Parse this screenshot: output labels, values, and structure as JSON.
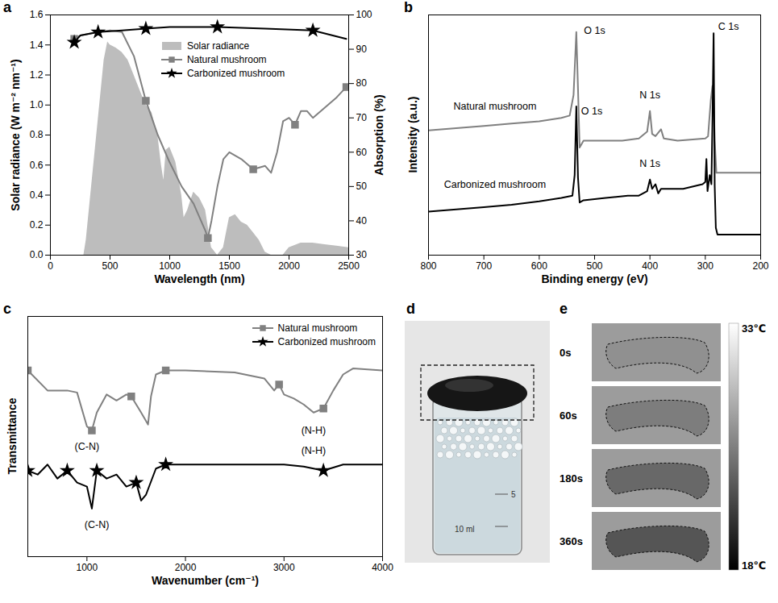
{
  "chart_data": [
    {
      "letter": "a",
      "type": "line",
      "x_label": "Wavelength (nm)",
      "y_label": "Solar radiance (W m⁻² nm⁻¹)",
      "y2_label": "Absorption (%)",
      "xlim": [
        0,
        2500
      ],
      "xticks": [
        0,
        500,
        1000,
        1500,
        2000,
        2500
      ],
      "ylim": [
        0,
        1.6
      ],
      "yticks": [
        {
          "value": 0,
          "label": "0.0"
        },
        0.2,
        0.4,
        0.6,
        0.8,
        {
          "value": 1,
          "label": "1.0"
        },
        1.2,
        1.4,
        1.6
      ],
      "y2lim": [
        30,
        100
      ],
      "y2ticks": [
        30,
        40,
        50,
        60,
        70,
        80,
        90,
        100
      ],
      "legend": "top",
      "series": [
        {
          "name": "Solar radiance",
          "type": "area",
          "color": "#bdbdbd",
          "x": [
            280,
            300,
            350,
            400,
            450,
            480,
            500,
            550,
            600,
            650,
            700,
            750,
            800,
            850,
            900,
            930,
            950,
            970,
            1000,
            1050,
            1100,
            1120,
            1150,
            1200,
            1250,
            1300,
            1350,
            1400,
            1450,
            1500,
            1550,
            1600,
            1650,
            1700,
            1750,
            1800,
            1850,
            1950,
            2000,
            2100,
            2200,
            2300,
            2400,
            2500
          ],
          "values": [
            0,
            0.1,
            0.5,
            0.9,
            1.3,
            1.42,
            1.4,
            1.38,
            1.35,
            1.3,
            1.2,
            1.1,
            1.0,
            0.95,
            0.8,
            0.6,
            0.5,
            0.7,
            0.72,
            0.62,
            0.4,
            0.25,
            0.3,
            0.42,
            0.38,
            0.3,
            0.05,
            0,
            0.05,
            0.25,
            0.27,
            0.22,
            0.2,
            0.15,
            0.1,
            0.02,
            0,
            0,
            0.05,
            0.08,
            0.08,
            0.07,
            0.06,
            0.05
          ]
        },
        {
          "name": "Natural mushroom",
          "axis": "y2",
          "color": "#808080",
          "marker": "square",
          "x": [
            200,
            250,
            400,
            500,
            600,
            700,
            800,
            900,
            1000,
            1100,
            1200,
            1300,
            1320,
            1350,
            1400,
            1450,
            1500,
            1600,
            1700,
            1800,
            1850,
            1900,
            1950,
            2000,
            2050,
            2100,
            2150,
            2200,
            2300,
            2400,
            2480
          ],
          "values": [
            93,
            94,
            95,
            95.5,
            95,
            88,
            75,
            65,
            57,
            50,
            45,
            37,
            35,
            40,
            50,
            58,
            60,
            58,
            55,
            56,
            54,
            60,
            69,
            70,
            68,
            72,
            72,
            70,
            73,
            76,
            79
          ]
        },
        {
          "name": "Carbonized mushroom",
          "axis": "y2",
          "color": "#000000",
          "marker": "star",
          "x": [
            200,
            250,
            400,
            600,
            800,
            1000,
            1400,
            1800,
            2200,
            2480
          ],
          "values": [
            92,
            94,
            95,
            95.5,
            96,
            96.5,
            96.5,
            96,
            95.5,
            93
          ]
        }
      ]
    },
    {
      "letter": "b",
      "type": "line",
      "x_label": "Binding energy (eV)",
      "y_label": "Intensity (a.u.)",
      "xlim": [
        800,
        200
      ],
      "xticks": [
        800,
        700,
        600,
        500,
        400,
        300,
        200
      ],
      "ylim": [
        0,
        10.5
      ],
      "tick_labels": "x",
      "annotations": [
        {
          "text": "O 1s",
          "x": 500,
          "y": 9.8
        },
        {
          "text": "N 1s",
          "x": 400,
          "y": 7.0
        },
        {
          "text": "C 1s",
          "x": 258,
          "y": 10.0
        },
        {
          "text": "O 1s",
          "x": 505,
          "y": 6.3
        },
        {
          "text": "N 1s",
          "x": 400,
          "y": 4.0
        },
        {
          "text": "Natural mushroom",
          "x": 680,
          "y": 6.5
        },
        {
          "text": "Carbonized mushroom",
          "x": 680,
          "y": 3.1
        }
      ],
      "series": [
        {
          "name": "Natural mushroom",
          "color": "#808080",
          "x": [
            800,
            750,
            700,
            650,
            600,
            560,
            545,
            538,
            533,
            530,
            527,
            520,
            500,
            450,
            420,
            405,
            400,
            396,
            390,
            380,
            375,
            350,
            300,
            295,
            290,
            287,
            285,
            283,
            280,
            270,
            250,
            200
          ],
          "values": [
            5.45,
            5.55,
            5.65,
            5.75,
            5.85,
            6.0,
            6.1,
            7.0,
            9.75,
            7.3,
            4.7,
            5.0,
            5.0,
            5.0,
            5.1,
            5.4,
            6.3,
            5.3,
            5.2,
            5.5,
            5.1,
            5.0,
            5.1,
            5.2,
            6.8,
            7.4,
            7.0,
            5.0,
            3.6,
            3.6,
            3.6,
            3.6
          ]
        },
        {
          "name": "Carbonized mushroom",
          "color": "#000000",
          "x": [
            800,
            750,
            700,
            650,
            600,
            560,
            540,
            536,
            533,
            530,
            527,
            520,
            480,
            440,
            420,
            405,
            400,
            396,
            390,
            385,
            380,
            340,
            305,
            300,
            298,
            296,
            292,
            289,
            287,
            285,
            283,
            281,
            278,
            260,
            230,
            200
          ],
          "values": [
            1.9,
            2.0,
            2.1,
            2.2,
            2.35,
            2.5,
            2.6,
            3.5,
            6.5,
            3.4,
            2.3,
            2.4,
            2.5,
            2.6,
            2.6,
            2.8,
            3.3,
            2.9,
            3.1,
            2.7,
            2.9,
            2.9,
            3.1,
            3.2,
            4.2,
            2.8,
            3.5,
            3.1,
            6.0,
            9.7,
            3.0,
            1.2,
            0.9,
            0.9,
            0.9,
            0.9
          ]
        }
      ]
    },
    {
      "letter": "c",
      "type": "line",
      "x_label": "Wavenumber (cm⁻¹)",
      "y_label": "Transmittance",
      "xlim": [
        400,
        4000
      ],
      "xticks": [
        1000,
        2000,
        3000,
        4000
      ],
      "ylim": [
        0,
        12
      ],
      "tick_labels": "x",
      "legend": "top-right",
      "annotations": [
        {
          "text": "(C-N)",
          "x": 1000,
          "y": 5.5
        },
        {
          "text": "(N-H)",
          "x": 3300,
          "y": 6.3
        },
        {
          "text": "(C-N)",
          "x": 1100,
          "y": 1.6
        },
        {
          "text": "(N-H)",
          "x": 3300,
          "y": 5.3
        }
      ],
      "series": [
        {
          "name": "Natural mushroom",
          "color": "#808080",
          "marker": "square",
          "x": [
            400,
            600,
            800,
            900,
            1000,
            1050,
            1100,
            1200,
            1300,
            1400,
            1450,
            1550,
            1620,
            1650,
            1700,
            1800,
            2000,
            2500,
            2800,
            2900,
            2950,
            3000,
            3100,
            3200,
            3300,
            3400,
            3500,
            3600,
            3700,
            4000
          ],
          "values": [
            9.3,
            8.3,
            8.3,
            8.2,
            6.5,
            6.3,
            7.2,
            8.1,
            7.8,
            8.1,
            8.0,
            7.2,
            6.6,
            8.0,
            9.1,
            9.3,
            9.3,
            9.2,
            8.9,
            8.3,
            8.6,
            8.1,
            7.9,
            7.6,
            7.2,
            7.4,
            8.3,
            9.1,
            9.4,
            9.3
          ]
        },
        {
          "name": "Carbonized mushroom",
          "color": "#000000",
          "marker": "star",
          "x": [
            400,
            500,
            600,
            700,
            800,
            900,
            1000,
            1050,
            1100,
            1200,
            1300,
            1400,
            1500,
            1550,
            1600,
            1700,
            1800,
            2500,
            3000,
            3200,
            3400,
            3600,
            4000
          ],
          "values": [
            4.3,
            4.1,
            4.6,
            3.9,
            4.3,
            3.7,
            3.5,
            2.4,
            4.3,
            3.9,
            4.1,
            3.5,
            3.7,
            2.8,
            3.1,
            4.4,
            4.6,
            4.6,
            4.6,
            4.5,
            4.3,
            4.6,
            4.6
          ]
        }
      ]
    }
  ],
  "photo": {
    "letter": "d",
    "texts": [
      "10 ml",
      "5"
    ]
  },
  "thermal_images": {
    "letter": "e",
    "frames": [
      "0s",
      "60s",
      "180s",
      "360s"
    ],
    "colorbar": {
      "range": [
        18,
        33
      ],
      "ticks": [
        {
          "value": 33,
          "label": "33℃"
        },
        {
          "value": 18,
          "label": "18℃"
        }
      ]
    }
  }
}
